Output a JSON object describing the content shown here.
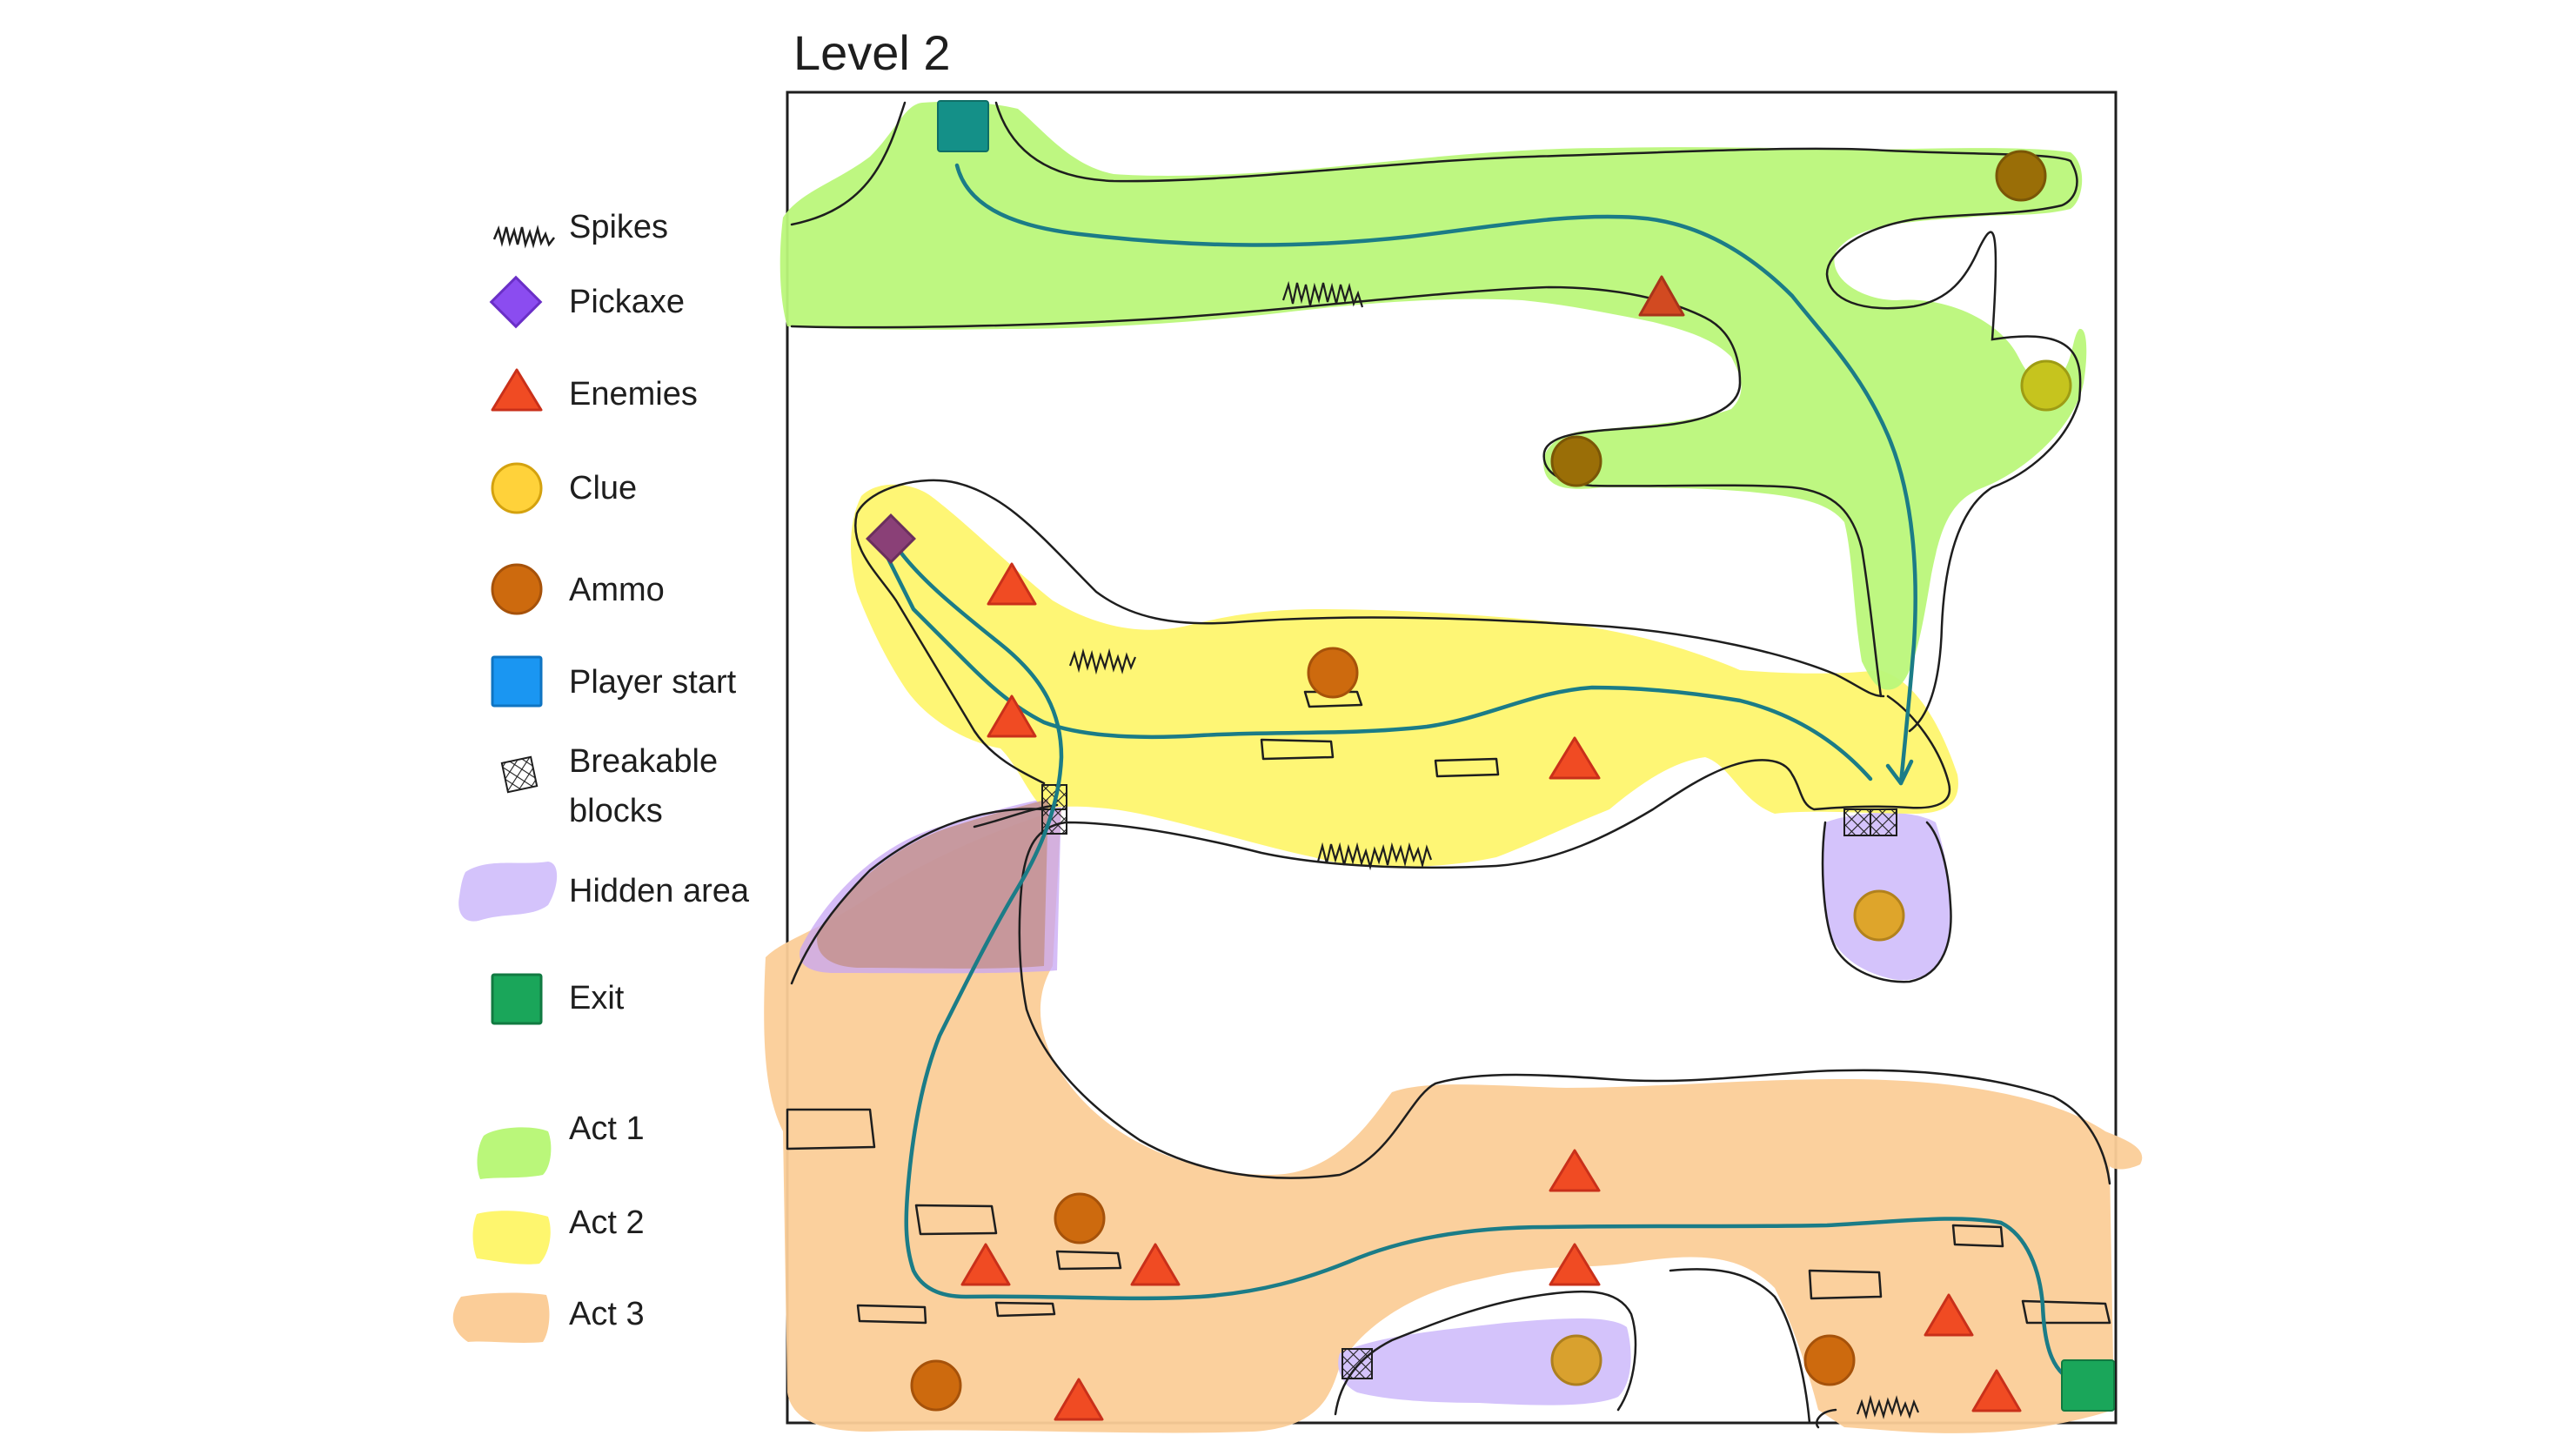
{
  "title": "Level 2",
  "legend": [
    {
      "key": "spikes",
      "label": "Spikes",
      "icon": "spikes-icon"
    },
    {
      "key": "pickaxe",
      "label": "Pickaxe",
      "icon": "pickaxe-icon",
      "color": "#8b4cf0"
    },
    {
      "key": "enemies",
      "label": "Enemies",
      "icon": "enemy-triangle-icon",
      "color": "#f04b23"
    },
    {
      "key": "clue",
      "label": "Clue",
      "icon": "clue-circle-icon",
      "color": "#ffd23a"
    },
    {
      "key": "ammo",
      "label": "Ammo",
      "icon": "ammo-circle-icon",
      "color": "#cd6a0e"
    },
    {
      "key": "player_start",
      "label": "Player start",
      "icon": "player-start-square-icon",
      "color": "#1a96f2"
    },
    {
      "key": "breakable",
      "label": "Breakable blocks",
      "label_lines": [
        "Breakable",
        "blocks"
      ],
      "icon": "breakable-block-icon"
    },
    {
      "key": "hidden",
      "label": "Hidden area",
      "icon": "hidden-area-swatch",
      "color": "#d4c3fb"
    },
    {
      "key": "exit",
      "label": "Exit",
      "icon": "exit-square-icon",
      "color": "#1aa65a"
    },
    {
      "key": "act1",
      "label": "Act 1",
      "icon": "act1-swatch",
      "color": "#baf77a"
    },
    {
      "key": "act2",
      "label": "Act 2",
      "icon": "act2-swatch",
      "color": "#fef66e"
    },
    {
      "key": "act3",
      "label": "Act 3",
      "icon": "act3-swatch",
      "color": "#fbcd98"
    }
  ],
  "colors": {
    "path": "#1b7c87",
    "outline": "#1e1e1e",
    "act1": "#baf77a",
    "act2": "#fef66e",
    "act3": "#fbcd98",
    "hidden": "#d4c3fb",
    "enemy": "#f04b23",
    "ammo": "#cd6a0e",
    "clue": "#ffd23a",
    "exit": "#1aa65a",
    "player": "#1a96f2",
    "pickaxe": "#8b4cf0"
  }
}
